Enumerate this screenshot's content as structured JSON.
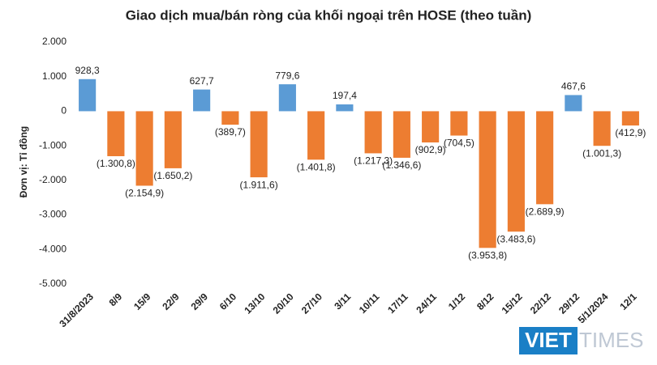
{
  "chart_data": {
    "type": "bar",
    "title": "Giao dịch mua/bán ròng của khối ngoại trên HOSE (theo tuần)",
    "y_label": "Đơn vị: Tỉ đồng",
    "categories": [
      "31/8/2023",
      "8/9",
      "15/9",
      "22/9",
      "29/9",
      "6/10",
      "13/10",
      "20/10",
      "27/10",
      "3/11",
      "10/11",
      "17/11",
      "24/11",
      "1/12",
      "8/12",
      "15/12",
      "22/12",
      "29/12",
      "5/1/2024",
      "12/1"
    ],
    "values": [
      928.3,
      -1300.8,
      -2154.9,
      -1650.2,
      627.7,
      -389.7,
      -1911.6,
      779.6,
      -1401.8,
      197.4,
      -1217.3,
      -1346.6,
      -902.9,
      -704.5,
      -3953.8,
      -3483.6,
      -2689.9,
      467.6,
      -1001.3,
      -412.9
    ],
    "value_labels": [
      "928,3",
      "(1.300,8)",
      "(2.154,9)",
      "(1.650,2)",
      "627,7",
      "(389,7)",
      "(1.911,6)",
      "779,6",
      "(1.401,8)",
      "197,4",
      "(1.217,3)",
      "(1.346,6)",
      "(902,9)",
      "(704,5)",
      "(3.953,8)",
      "(3.483,6)",
      "(2.689,9)",
      "467,6",
      "(1.001,3)",
      "(412,9)"
    ],
    "positive_color": "#5b9bd5",
    "negative_color": "#ed7d31",
    "ylim": [
      -5000,
      2000
    ],
    "yticks": [
      {
        "value": 2000,
        "label": "2.000"
      },
      {
        "value": 1000,
        "label": "1.000"
      },
      0,
      {
        "value": -1000,
        "label": "-1.000"
      },
      {
        "value": -2000,
        "label": "-2.000"
      },
      {
        "value": -3000,
        "label": "-3.000"
      },
      {
        "value": -4000,
        "label": "-4.000"
      },
      {
        "value": -5000,
        "label": "-5.000"
      }
    ],
    "grid": false
  },
  "watermark": {
    "part1": "VIET",
    "part2": "TIMES"
  }
}
